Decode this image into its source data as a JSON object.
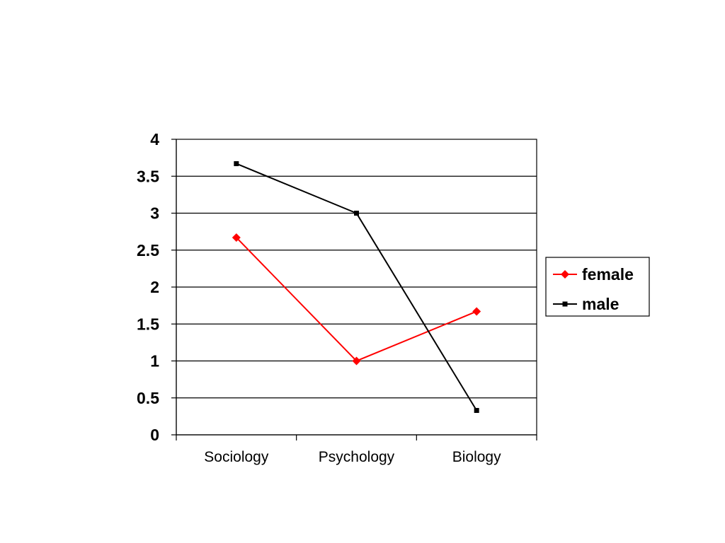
{
  "chart_data": {
    "type": "line",
    "title": "",
    "xlabel": "",
    "ylabel": "",
    "categories": [
      "Sociology",
      "Psychology",
      "Biology"
    ],
    "ylim": [
      0,
      4
    ],
    "yticks": [
      "0",
      "0.5",
      "1",
      "1.5",
      "2",
      "2.5",
      "3",
      "3.5",
      "4"
    ],
    "grid": true,
    "legend_position": "right",
    "series": [
      {
        "name": "female",
        "values": [
          2.67,
          1.0,
          1.67
        ],
        "color": "#ff0000",
        "marker": "diamond"
      },
      {
        "name": "male",
        "values": [
          3.67,
          3.0,
          0.33
        ],
        "color": "#000000",
        "marker": "square"
      }
    ]
  }
}
